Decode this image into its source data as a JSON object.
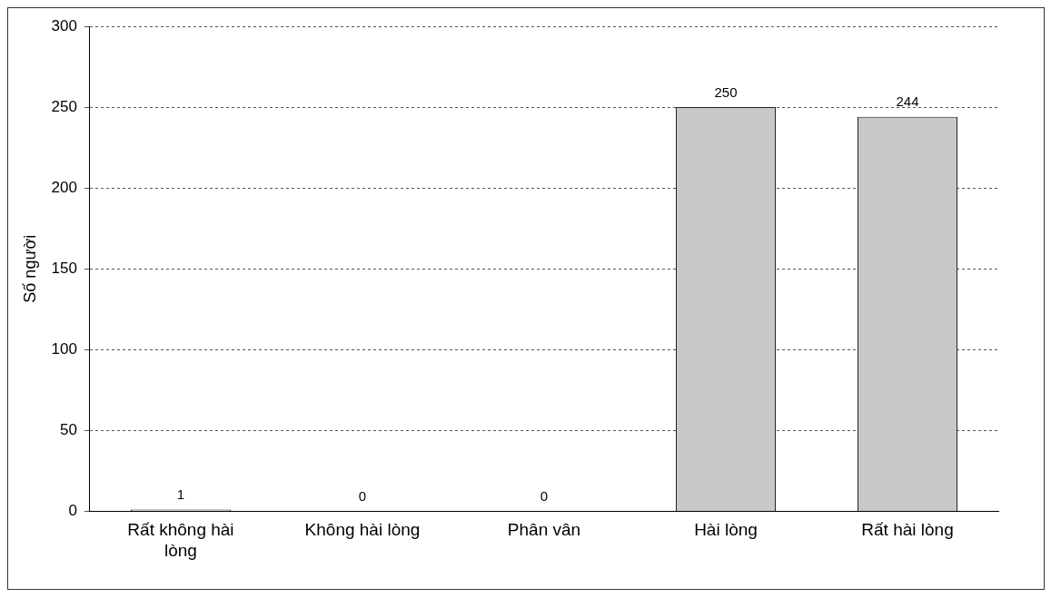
{
  "chart_data": {
    "type": "bar",
    "ylabel": "Số người",
    "categories": [
      "Rất không hài lòng",
      "Không hài lòng",
      "Phân vân",
      "Hài lòng",
      "Rất hài lòng"
    ],
    "values": [
      1,
      0,
      0,
      250,
      244
    ],
    "color": "#c8c8c8",
    "ylim": [
      0,
      300
    ],
    "yticks": [
      0,
      50,
      100,
      150,
      200,
      250,
      300
    ],
    "grid": "y",
    "data_labels": true,
    "legend": false
  }
}
